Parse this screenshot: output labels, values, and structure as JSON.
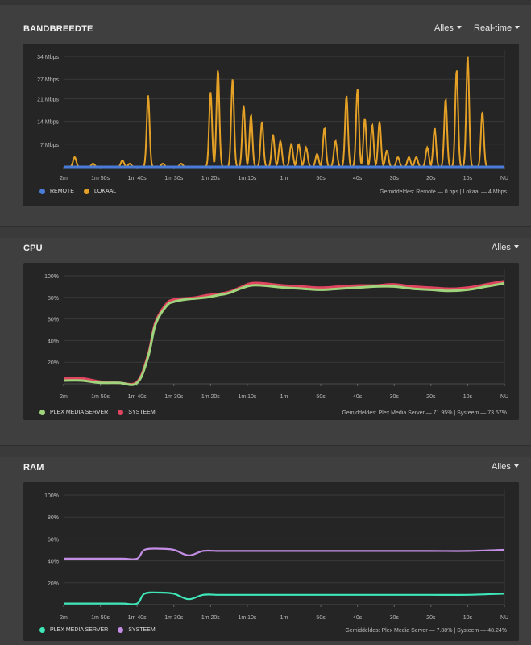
{
  "bandwidth": {
    "title": "BANDBREEDTE",
    "filter_label": "Alles",
    "range_label": "Real-time",
    "y_ticks": [
      "34 Mbps",
      "27 Mbps",
      "21 Mbps",
      "14 Mbps",
      "7 Mbps"
    ],
    "x_ticks": [
      "2m",
      "1m 50s",
      "1m 40s",
      "1m 30s",
      "1m 20s",
      "1m 10s",
      "1m",
      "50s",
      "40s",
      "30s",
      "20s",
      "10s",
      "NU"
    ],
    "legend": [
      {
        "label": "REMOTE",
        "color": "#4a7bd6"
      },
      {
        "label": "LOKAAL",
        "color": "#e5a126"
      }
    ],
    "average_text": "Gemiddeldes: Remote — 0 bps | Lokaal — 4 Mbps",
    "colors": {
      "remote": "#4a7bd6",
      "local": "#e5a126"
    }
  },
  "cpu": {
    "title": "CPU",
    "filter_label": "Alles",
    "y_ticks": [
      "100%",
      "80%",
      "60%",
      "40%",
      "20%"
    ],
    "x_ticks": [
      "2m",
      "1m 50s",
      "1m 40s",
      "1m 30s",
      "1m 20s",
      "1m 10s",
      "1m",
      "50s",
      "40s",
      "30s",
      "20s",
      "10s",
      "NU"
    ],
    "legend": [
      {
        "label": "PLEX MEDIA SERVER",
        "color": "#9fd47c"
      },
      {
        "label": "SYSTEEM",
        "color": "#e0455f"
      }
    ],
    "average_text": "Gemiddeldes: Plex Media Server — 71.95% | Systeem — 73.57%"
  },
  "ram": {
    "title": "RAM",
    "filter_label": "Alles",
    "y_ticks": [
      "100%",
      "80%",
      "60%",
      "40%",
      "20%"
    ],
    "x_ticks": [
      "2m",
      "1m 50s",
      "1m 40s",
      "1m 30s",
      "1m 20s",
      "1m 10s",
      "1m",
      "50s",
      "40s",
      "30s",
      "20s",
      "10s",
      "NU"
    ],
    "legend": [
      {
        "label": "PLEX MEDIA SERVER",
        "color": "#3ee6b8"
      },
      {
        "label": "SYSTEEM",
        "color": "#c58ee6"
      }
    ],
    "average_text": "Gemiddeldes: Plex Media Server — 7.88% | Systeem — 48.24%"
  },
  "chart_data": [
    {
      "type": "line",
      "chart": "bandwidth",
      "x": [
        120,
        115,
        110,
        105,
        100,
        95,
        90,
        85,
        80,
        75,
        70,
        65,
        60,
        55,
        50,
        45,
        40,
        35,
        30,
        25,
        20,
        15,
        10,
        5,
        0
      ],
      "ylim": [
        0,
        34
      ],
      "series": [
        {
          "name": "REMOTE",
          "values": [
            0,
            0,
            0,
            0,
            0,
            0,
            0,
            0,
            0,
            0,
            0,
            0,
            0,
            0,
            0,
            0,
            0,
            0,
            0,
            0,
            0,
            0,
            0,
            0,
            0
          ]
        },
        {
          "name": "LOKAAL",
          "peaks": [
            [
              117,
              3
            ],
            [
              112,
              1
            ],
            [
              104,
              2
            ],
            [
              102,
              1
            ],
            [
              97,
              22
            ],
            [
              93,
              1
            ],
            [
              88,
              1
            ],
            [
              80,
              23
            ],
            [
              78,
              30
            ],
            [
              74,
              27
            ],
            [
              71,
              19
            ],
            [
              69,
              16
            ],
            [
              66,
              14
            ],
            [
              63,
              10
            ],
            [
              61,
              8
            ],
            [
              58,
              7
            ],
            [
              56,
              7
            ],
            [
              54,
              6
            ],
            [
              51,
              4
            ],
            [
              49,
              12
            ],
            [
              46,
              8
            ],
            [
              43,
              22
            ],
            [
              40,
              24
            ],
            [
              38,
              15
            ],
            [
              36,
              13
            ],
            [
              34,
              14
            ],
            [
              32,
              5
            ],
            [
              29,
              3
            ],
            [
              26,
              3
            ],
            [
              24,
              3
            ],
            [
              21,
              6
            ],
            [
              19,
              12
            ],
            [
              16,
              21
            ],
            [
              13,
              30
            ],
            [
              10,
              34
            ],
            [
              6,
              17
            ]
          ]
        }
      ]
    },
    {
      "type": "line",
      "chart": "cpu",
      "x": [
        120,
        115,
        110,
        105,
        100,
        97,
        95,
        92,
        90,
        87,
        84,
        81,
        78,
        75,
        72,
        69,
        66,
        63,
        60,
        55,
        50,
        45,
        40,
        35,
        30,
        25,
        20,
        15,
        10,
        5,
        0
      ],
      "ylim": [
        0,
        100
      ],
      "series": [
        {
          "name": "PLEX MEDIA SERVER",
          "values": [
            3,
            3,
            1,
            1,
            1,
            25,
            55,
            72,
            76,
            78,
            79,
            80,
            82,
            84,
            88,
            91,
            91,
            90,
            89,
            88,
            87,
            88,
            89,
            90,
            90,
            88,
            87,
            86,
            87,
            90,
            93
          ]
        },
        {
          "name": "SYSTEEM",
          "values": [
            5,
            5,
            2,
            1,
            2,
            27,
            57,
            74,
            78,
            79,
            80,
            82,
            83,
            85,
            89,
            93,
            93,
            92,
            91,
            90,
            89,
            90,
            91,
            91,
            92,
            90,
            89,
            88,
            89,
            92,
            95
          ]
        }
      ]
    },
    {
      "type": "line",
      "chart": "ram",
      "x": [
        120,
        110,
        104,
        100,
        98,
        94,
        90,
        86,
        82,
        78,
        74,
        70,
        60,
        50,
        40,
        30,
        20,
        10,
        0
      ],
      "ylim": [
        0,
        100
      ],
      "series": [
        {
          "name": "PLEX MEDIA SERVER",
          "values": [
            1,
            1,
            1,
            1,
            10,
            11,
            10,
            5,
            9,
            9,
            9,
            9,
            9,
            9,
            9,
            9,
            9,
            9,
            10
          ]
        },
        {
          "name": "SYSTEEM",
          "values": [
            42,
            42,
            42,
            42,
            50,
            51,
            50,
            45,
            49,
            49,
            49,
            49,
            49,
            49,
            49,
            49,
            49,
            49,
            50
          ]
        }
      ]
    }
  ]
}
